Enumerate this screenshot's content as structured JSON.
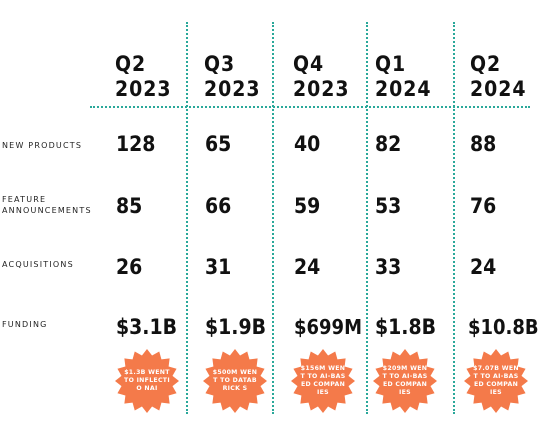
{
  "quarters": [
    {
      "quarter": "Q2",
      "year": "2023"
    },
    {
      "quarter": "Q3",
      "year": "2023"
    },
    {
      "quarter": "Q4",
      "year": "2023"
    },
    {
      "quarter": "Q1",
      "year": "2024"
    },
    {
      "quarter": "Q2",
      "year": "2024"
    }
  ],
  "rows": [
    {
      "label": "NEW PRODUCTS",
      "values": [
        "128",
        "65",
        "40",
        "82",
        "88"
      ]
    },
    {
      "label": "FEATURE ANNOUNCEMENTS",
      "values": [
        "85",
        "66",
        "59",
        "53",
        "76"
      ]
    },
    {
      "label": "ACQUISITIONS",
      "values": [
        "26",
        "31",
        "24",
        "33",
        "24"
      ]
    },
    {
      "label": "FUNDING",
      "values": [
        "$3.1B",
        "$1.9B",
        "$699M",
        "$1.8B",
        "$10.8B"
      ]
    }
  ],
  "badges": [
    "$1.3B WENT TO INFLECTIO NAI",
    "$500M WENT TO DATABRICK S",
    "$156M WENT TO AI-BASED COMPANIES",
    "$209M WENT TO AI-BASED COMPANIES",
    "$7.07B WENT TO AI-BASED COMPANIES"
  ],
  "colors": {
    "divider": "#2aa89a",
    "badge": "#f47a4a",
    "text": "#111111"
  }
}
